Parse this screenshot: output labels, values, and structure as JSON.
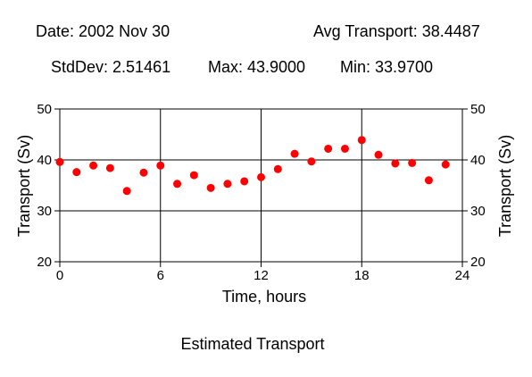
{
  "header": {
    "date": "Date: 2002 Nov 30",
    "avg_transport": "Avg Transport: 38.4487",
    "stddev": "StdDev: 2.51461",
    "max": "Max: 43.9000",
    "min": "Min: 33.9700"
  },
  "chart_data": {
    "type": "scatter",
    "title": "Estimated Transport",
    "xlabel": "Time, hours",
    "ylabel": "Transport (Sv)",
    "ylabel_right": "Transport (Sv)",
    "xlim": [
      0,
      24
    ],
    "ylim": [
      20,
      50
    ],
    "xticks": [
      0,
      6,
      12,
      18,
      24
    ],
    "yticks": [
      20,
      30,
      40,
      50
    ],
    "grid": true,
    "marker_color": "#ff0000",
    "series": [
      {
        "x": [
          0,
          1,
          2,
          3,
          4,
          5,
          6,
          7,
          8,
          9,
          10,
          11,
          12,
          13,
          14,
          15,
          16,
          17,
          18,
          19,
          20,
          21,
          22,
          23
        ],
        "y": [
          39.6,
          37.6,
          38.9,
          38.4,
          33.9,
          37.5,
          38.9,
          35.3,
          37.0,
          34.5,
          35.3,
          35.8,
          36.6,
          38.2,
          41.2,
          39.7,
          42.2,
          42.2,
          43.9,
          41.0,
          39.3,
          39.4,
          36.0,
          39.1
        ]
      }
    ]
  }
}
